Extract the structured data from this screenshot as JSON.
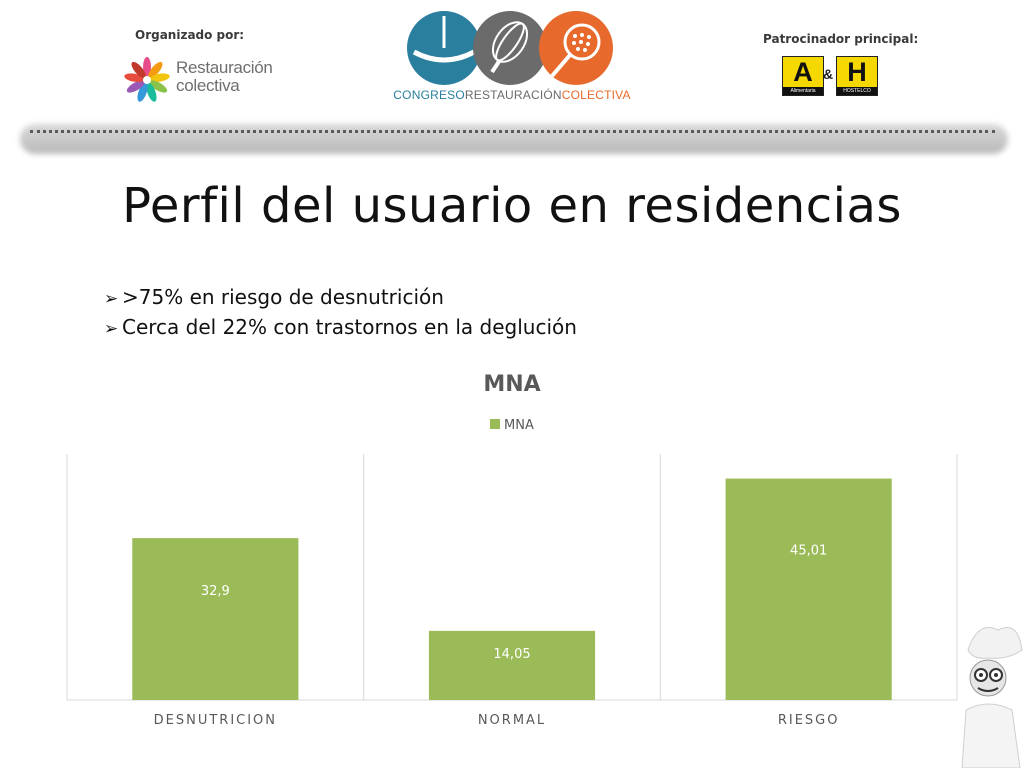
{
  "header": {
    "organizer_label": "Organizado por:",
    "organizer_logo_line1": "Restauración",
    "organizer_logo_line2": "colectiva",
    "congress_name_part1": "CONGRESO",
    "congress_name_part2": "RESTAURACIÓN",
    "congress_name_part3": "COLECTIVA",
    "sponsor_label": "Patrocinador principal:",
    "sponsor_logo_a": "A",
    "sponsor_logo_amp": "&",
    "sponsor_logo_h": "H",
    "sponsor_logo_a_caption": "Alimentaria",
    "sponsor_logo_h_caption": "HOSTELCO"
  },
  "slide": {
    "title": "Perfil del usuario en residencias",
    "bullets": [
      ">75% en riesgo de desnutrición",
      "Cerca del 22% con trastornos en la deglución"
    ]
  },
  "colors": {
    "bar": "#9bbb59",
    "gridline": "#d9d9d9",
    "axis_text": "#595959",
    "title_text": "#595959",
    "data_label": "#ffffff",
    "logo_blue": "#2a7f9e",
    "logo_gray": "#6b6b6b",
    "logo_orange": "#e8692c"
  },
  "chart_data": {
    "type": "bar",
    "title": "MNA",
    "legend": [
      "MNA"
    ],
    "legend_position": "top",
    "categories": [
      "DESNUTRICION",
      "NORMAL",
      "RIESGO"
    ],
    "series": [
      {
        "name": "MNA",
        "values": [
          32.9,
          14.05,
          45.01
        ],
        "labels": [
          "32,9",
          "14,05",
          "45,01"
        ]
      }
    ],
    "ylim": [
      0,
      50
    ],
    "grid": "vertical category separators",
    "y_axis_visible": false,
    "xlabel": "",
    "ylabel": ""
  }
}
